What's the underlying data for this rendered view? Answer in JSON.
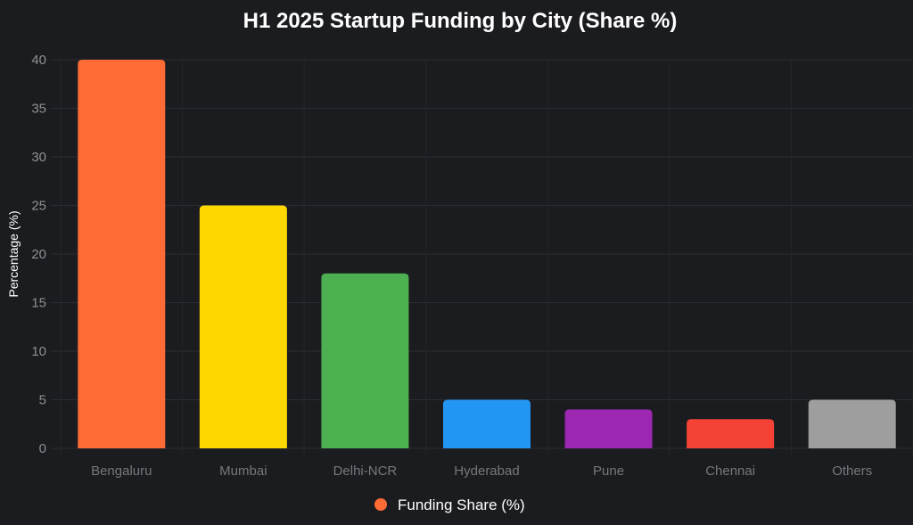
{
  "chart_data": {
    "type": "bar",
    "title": "H1 2025 Startup Funding by City (Share %)",
    "xlabel": "",
    "ylabel": "Percentage (%)",
    "categories": [
      "Bengaluru",
      "Mumbai",
      "Delhi-NCR",
      "Hyderabad",
      "Pune",
      "Chennai",
      "Others"
    ],
    "series": [
      {
        "name": "Funding Share (%)",
        "values": [
          40,
          25,
          18,
          5,
          4,
          3,
          5
        ]
      }
    ],
    "colors": [
      "#ff6b35",
      "#ffd700",
      "#4caf50",
      "#2196f3",
      "#9c27b0",
      "#f44336",
      "#9e9e9e"
    ],
    "legend_color": "#ff6b35",
    "ylim": [
      0,
      40
    ],
    "yticks": [
      0,
      5,
      10,
      15,
      20,
      25,
      30,
      35,
      40
    ],
    "grid": true,
    "legend_position": "bottom"
  }
}
